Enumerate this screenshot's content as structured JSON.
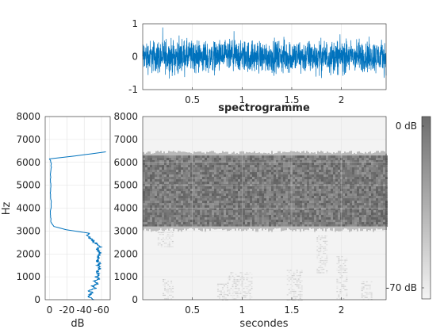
{
  "chart_data": [
    {
      "id": "waveform",
      "type": "line",
      "title": "",
      "xlabel": "",
      "ylabel": "",
      "xlim": [
        0,
        2.45
      ],
      "ylim": [
        -1,
        1
      ],
      "x_ticks": [
        "0.5",
        "1",
        "1.5",
        "2"
      ],
      "x_tick_values": [
        0.5,
        1,
        1.5,
        2
      ],
      "y_ticks": [
        "-1",
        "0",
        "1"
      ],
      "y_tick_values": [
        -1,
        0,
        1
      ],
      "grid": true,
      "series": [
        {
          "description_amplitude_envelope": [
            [
              0.0,
              0.72
            ],
            [
              0.25,
              0.75
            ],
            [
              0.5,
              0.72
            ],
            [
              0.75,
              0.7
            ],
            [
              1.0,
              0.72
            ],
            [
              1.25,
              0.7
            ],
            [
              1.5,
              0.74
            ],
            [
              1.75,
              0.72
            ],
            [
              2.0,
              0.74
            ],
            [
              2.25,
              0.72
            ],
            [
              2.45,
              0.7
            ]
          ],
          "color": "#0072BD"
        }
      ]
    },
    {
      "id": "spectrum",
      "type": "line",
      "title": "",
      "xlabel": "dB",
      "ylabel": "Hz",
      "xlim": [
        5,
        -70
      ],
      "ylim": [
        0,
        8000
      ],
      "x_ticks": [
        "0",
        "-20",
        "-40",
        "-60"
      ],
      "x_tick_values": [
        0,
        -20,
        -40,
        -60
      ],
      "y_ticks": [
        "0",
        "1000",
        "2000",
        "3000",
        "4000",
        "5000",
        "6000",
        "7000",
        "8000"
      ],
      "y_tick_values": [
        0,
        1000,
        2000,
        3000,
        4000,
        5000,
        6000,
        7000,
        8000
      ],
      "grid": true,
      "series": [
        {
          "color": "#0072BD",
          "points": [
            [
              -52,
              0
            ],
            [
              -47,
              100
            ],
            [
              -45,
              200
            ],
            [
              -50,
              300
            ],
            [
              -45,
              400
            ],
            [
              -53,
              500
            ],
            [
              -49,
              600
            ],
            [
              -56,
              700
            ],
            [
              -52,
              800
            ],
            [
              -57,
              900
            ],
            [
              -54,
              1000
            ],
            [
              -58,
              1100
            ],
            [
              -55,
              1200
            ],
            [
              -56,
              1300
            ],
            [
              -58,
              1400
            ],
            [
              -56,
              1500
            ],
            [
              -58,
              1600
            ],
            [
              -55,
              1700
            ],
            [
              -57,
              1800
            ],
            [
              -56,
              1900
            ],
            [
              -58,
              2000
            ],
            [
              -57,
              2100
            ],
            [
              -55,
              2200
            ],
            [
              -58,
              2300
            ],
            [
              -56,
              2400
            ],
            [
              -52,
              2500
            ],
            [
              -50,
              2600
            ],
            [
              -46,
              2700
            ],
            [
              -44,
              2800
            ],
            [
              -46,
              2900
            ],
            [
              -38,
              2950
            ],
            [
              -20,
              3050
            ],
            [
              -5,
              3200
            ],
            [
              -1.5,
              3400
            ],
            [
              -1,
              3800
            ],
            [
              -2,
              4200
            ],
            [
              -1,
              4600
            ],
            [
              -1.5,
              5000
            ],
            [
              -1,
              5400
            ],
            [
              -2,
              5800
            ],
            [
              -1.5,
              6050
            ],
            [
              0,
              6150
            ],
            [
              -30,
              6280
            ],
            [
              -65,
              6460
            ]
          ]
        }
      ]
    },
    {
      "id": "spectrogram",
      "type": "heatmap",
      "title": "spectrogramme",
      "xlabel": "secondes",
      "ylabel": "",
      "xlim": [
        0,
        2.45
      ],
      "ylim": [
        0,
        8000
      ],
      "x_ticks": [
        "0.5",
        "1",
        "1.5",
        "2"
      ],
      "x_tick_values": [
        0.5,
        1,
        1.5,
        2
      ],
      "y_ticks": [
        "0",
        "1000",
        "2000",
        "3000",
        "4000",
        "5000",
        "6000",
        "7000",
        "8000"
      ],
      "y_tick_values": [
        0,
        1000,
        2000,
        3000,
        4000,
        5000,
        6000,
        7000,
        8000
      ],
      "grid": true,
      "colormap": "gray",
      "bands": [
        {
          "freq_range": [
            3200,
            6300
          ],
          "level_db": -3,
          "description": "dense noise band"
        },
        {
          "freq_range": [
            6300,
            8000
          ],
          "level_db": -68
        },
        {
          "freq_range": [
            0,
            3200
          ],
          "level_db": -66
        }
      ],
      "speech_events": [
        {
          "t": [
            0.15,
            0.3
          ],
          "f": [
            2300,
            3100
          ]
        },
        {
          "t": [
            0.2,
            0.3
          ],
          "f": [
            0,
            900
          ]
        },
        {
          "t": [
            0.75,
            0.85
          ],
          "f": [
            0,
            700
          ]
        },
        {
          "t": [
            0.85,
            1.1
          ],
          "f": [
            0,
            1200
          ]
        },
        {
          "t": [
            1.45,
            1.6
          ],
          "f": [
            0,
            1300
          ]
        },
        {
          "t": [
            1.75,
            1.85
          ],
          "f": [
            1200,
            2800
          ]
        },
        {
          "t": [
            1.95,
            2.05
          ],
          "f": [
            0,
            1900
          ]
        },
        {
          "t": [
            2.2,
            2.3
          ],
          "f": [
            0,
            800
          ]
        }
      ]
    },
    {
      "id": "colorbar",
      "type": "colorbar",
      "range_db": [
        -70,
        0
      ],
      "ticks": [
        "0 dB",
        "-70 dB"
      ],
      "tick_values": [
        0,
        -70
      ],
      "colormap": "gray"
    }
  ]
}
